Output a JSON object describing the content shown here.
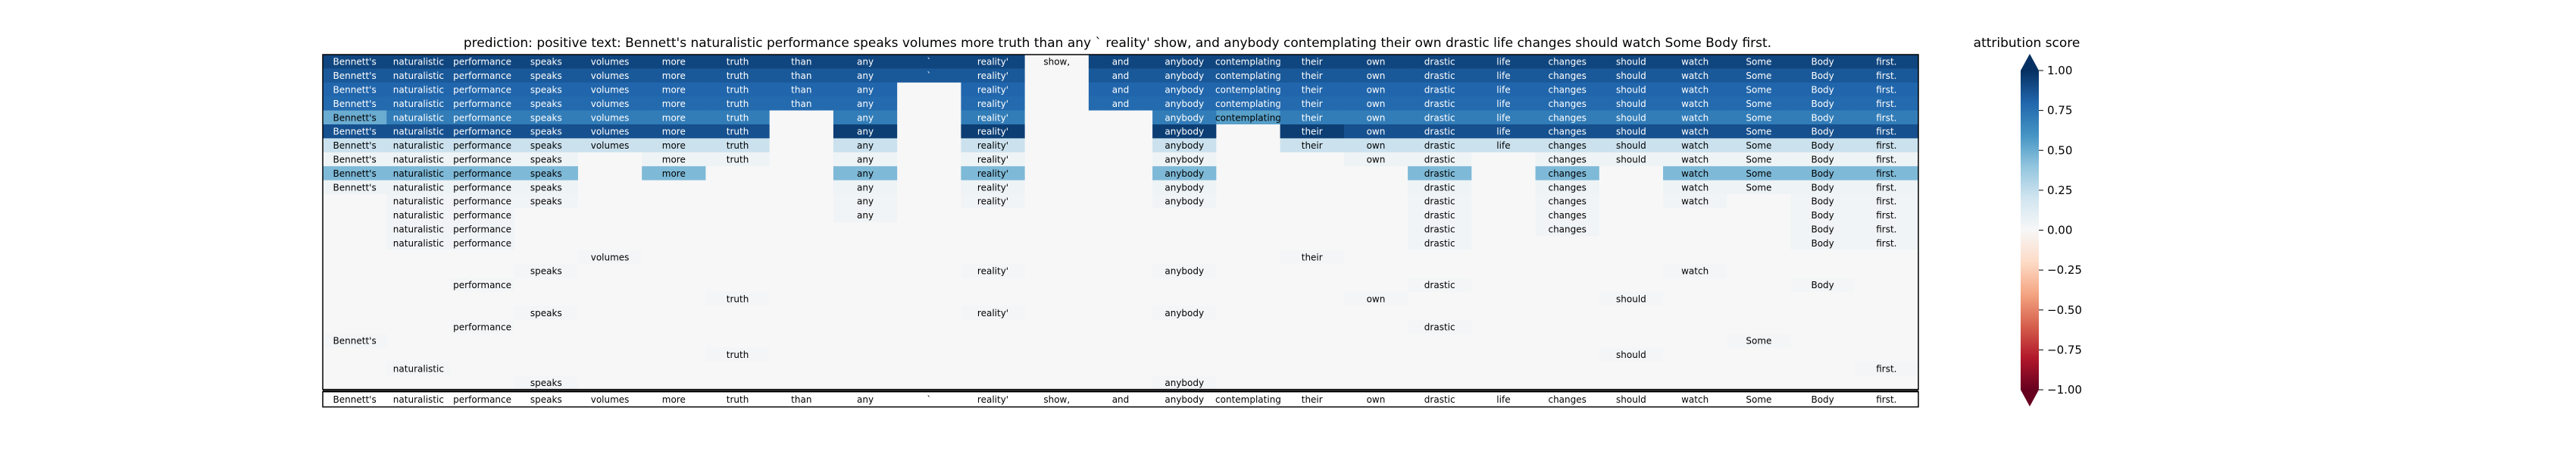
{
  "chart_data": {
    "type": "heatmap",
    "title": "prediction:  positive     text:  Bennett's naturalistic performance speaks volumes more truth than any ` reality' show, and anybody contemplating their own drastic life changes should watch Some Body first.",
    "colorbar_label": "attribution score",
    "colorbar_ticks": [
      "1.00",
      "0.75",
      "0.50",
      "0.25",
      "0.00",
      "−0.25",
      "−0.50",
      "−0.75",
      "−1.00"
    ],
    "color_range": [
      -1,
      1
    ],
    "colormap": [
      "#67001f",
      "#b2182b",
      "#d6604d",
      "#f4a582",
      "#fddbc7",
      "#f7f7f7",
      "#d1e5f0",
      "#92c5de",
      "#4393c3",
      "#2166ac",
      "#053061"
    ],
    "tokens": [
      "Bennett's",
      "naturalistic",
      "performance",
      "speaks",
      "volumes",
      "more",
      "truth",
      "than",
      "any",
      "`",
      "reality'",
      "show,",
      "and",
      "anybody",
      "contemplating",
      "their",
      "own",
      "drastic",
      "life",
      "changes",
      "should",
      "watch",
      "Some",
      "Body",
      "first."
    ],
    "rows": [
      [
        0.92,
        0.92,
        0.92,
        0.92,
        0.92,
        0.92,
        0.92,
        0.92,
        0.92,
        0.92,
        0.92,
        0.0,
        0.92,
        0.92,
        0.92,
        0.92,
        0.92,
        0.92,
        0.92,
        0.92,
        0.92,
        0.92,
        0.92,
        0.92,
        0.92
      ],
      [
        0.85,
        0.85,
        0.85,
        0.85,
        0.85,
        0.85,
        0.85,
        0.85,
        0.85,
        0.85,
        0.85,
        0.0,
        0.85,
        0.85,
        0.85,
        0.85,
        0.85,
        0.85,
        0.85,
        0.85,
        0.85,
        0.85,
        0.85,
        0.85,
        0.85
      ],
      [
        0.8,
        0.8,
        0.8,
        0.8,
        0.8,
        0.8,
        0.8,
        0.8,
        0.8,
        0.0,
        0.8,
        0.0,
        0.8,
        0.8,
        0.8,
        0.8,
        0.8,
        0.8,
        0.8,
        0.8,
        0.8,
        0.8,
        0.8,
        0.8,
        0.8
      ],
      [
        0.78,
        0.78,
        0.78,
        0.78,
        0.78,
        0.78,
        0.78,
        0.78,
        0.78,
        0.0,
        0.78,
        0.0,
        0.78,
        0.78,
        0.78,
        0.78,
        0.78,
        0.78,
        0.78,
        0.78,
        0.78,
        0.78,
        0.78,
        0.78,
        0.78
      ],
      [
        0.5,
        0.7,
        0.7,
        0.7,
        0.7,
        0.7,
        0.7,
        0.0,
        0.7,
        0.0,
        0.7,
        0.0,
        0.0,
        0.7,
        0.55,
        0.7,
        0.7,
        0.7,
        0.7,
        0.7,
        0.7,
        0.7,
        0.7,
        0.7,
        0.7
      ],
      [
        0.88,
        0.88,
        0.88,
        0.88,
        0.88,
        0.88,
        0.88,
        0.0,
        0.95,
        0.0,
        0.95,
        0.0,
        0.0,
        0.95,
        0.0,
        0.95,
        0.88,
        0.88,
        0.88,
        0.88,
        0.88,
        0.88,
        0.88,
        0.88,
        0.88
      ],
      [
        0.22,
        0.22,
        0.22,
        0.22,
        0.22,
        0.22,
        0.22,
        0.0,
        0.22,
        0.0,
        0.22,
        0.0,
        0.0,
        0.22,
        0.0,
        0.22,
        0.22,
        0.22,
        0.22,
        0.22,
        0.22,
        0.22,
        0.22,
        0.22,
        0.22
      ],
      [
        0.05,
        0.05,
        0.05,
        0.05,
        0.0,
        0.05,
        0.05,
        0.0,
        0.05,
        0.0,
        0.05,
        0.0,
        0.0,
        0.05,
        0.0,
        0.0,
        0.05,
        0.05,
        0.0,
        0.05,
        0.05,
        0.05,
        0.05,
        0.05,
        0.05
      ],
      [
        0.45,
        0.45,
        0.45,
        0.45,
        0.0,
        0.45,
        0.0,
        0.0,
        0.45,
        0.0,
        0.45,
        0.0,
        0.0,
        0.45,
        0.0,
        0.0,
        0.0,
        0.45,
        0.0,
        0.45,
        0.0,
        0.45,
        0.45,
        0.45,
        0.45
      ],
      [
        0.05,
        0.05,
        0.05,
        0.05,
        0.0,
        0.0,
        0.0,
        0.0,
        0.05,
        0.0,
        0.05,
        0.0,
        0.0,
        0.05,
        0.0,
        0.0,
        0.0,
        0.05,
        0.0,
        0.05,
        0.0,
        0.05,
        0.05,
        0.05,
        0.05
      ],
      [
        0.0,
        0.03,
        0.03,
        0.03,
        0.0,
        0.0,
        0.0,
        0.0,
        0.03,
        0.0,
        0.03,
        0.0,
        0.0,
        0.03,
        0.0,
        0.0,
        0.0,
        0.03,
        0.0,
        0.03,
        0.0,
        0.03,
        0.0,
        0.03,
        0.03
      ],
      [
        0.0,
        0.03,
        0.03,
        0.0,
        0.0,
        0.0,
        0.0,
        0.0,
        0.03,
        0.0,
        0.0,
        0.0,
        0.0,
        0.0,
        0.0,
        0.0,
        0.0,
        0.03,
        0.0,
        0.03,
        0.0,
        0.0,
        0.0,
        0.03,
        0.03
      ],
      [
        0.0,
        0.03,
        0.03,
        0.0,
        0.0,
        0.0,
        0.0,
        0.0,
        0.0,
        0.0,
        0.0,
        0.0,
        0.0,
        0.0,
        0.0,
        0.0,
        0.0,
        0.03,
        0.0,
        0.03,
        0.0,
        0.0,
        0.0,
        0.03,
        0.03
      ],
      [
        0.0,
        0.03,
        0.03,
        0.0,
        0.0,
        0.0,
        0.0,
        0.0,
        0.0,
        0.0,
        0.0,
        0.0,
        0.0,
        0.0,
        0.0,
        0.0,
        0.0,
        0.03,
        0.0,
        0.0,
        0.0,
        0.0,
        0.0,
        0.03,
        0.03
      ],
      [
        0.0,
        0.0,
        0.0,
        0.0,
        0.02,
        0.0,
        0.0,
        0.0,
        0.0,
        0.0,
        0.0,
        0.0,
        0.0,
        0.0,
        0.0,
        0.02,
        0.0,
        0.0,
        0.0,
        0.0,
        0.0,
        0.0,
        0.0,
        0.0,
        0.0
      ],
      [
        0.0,
        0.0,
        0.0,
        0.02,
        0.0,
        0.0,
        0.0,
        0.0,
        0.0,
        0.0,
        0.02,
        0.0,
        0.0,
        0.02,
        0.0,
        0.0,
        0.0,
        0.0,
        0.0,
        0.0,
        0.0,
        0.02,
        0.0,
        0.0,
        0.0
      ],
      [
        0.0,
        0.0,
        0.02,
        0.0,
        0.0,
        0.0,
        0.0,
        0.0,
        0.0,
        0.0,
        0.0,
        0.0,
        0.0,
        0.0,
        0.0,
        0.0,
        0.0,
        0.02,
        0.0,
        0.0,
        0.0,
        0.0,
        0.0,
        0.02,
        0.0
      ],
      [
        0.0,
        0.0,
        0.0,
        0.0,
        0.0,
        0.0,
        0.02,
        0.0,
        0.0,
        0.0,
        0.0,
        0.0,
        0.0,
        0.0,
        0.0,
        0.0,
        0.02,
        0.0,
        0.0,
        0.0,
        0.02,
        0.0,
        0.0,
        0.0,
        0.0
      ],
      [
        0.0,
        0.0,
        0.0,
        0.02,
        0.0,
        0.0,
        0.0,
        0.0,
        0.0,
        0.0,
        0.02,
        0.0,
        0.0,
        0.02,
        0.0,
        0.0,
        0.0,
        0.0,
        0.0,
        0.0,
        0.0,
        0.0,
        0.0,
        0.0,
        0.0
      ],
      [
        0.0,
        0.0,
        0.02,
        0.0,
        0.0,
        0.0,
        0.0,
        0.0,
        0.0,
        0.0,
        0.0,
        0.0,
        0.0,
        0.0,
        0.0,
        0.0,
        0.0,
        0.02,
        0.0,
        0.0,
        0.0,
        0.0,
        0.0,
        0.0,
        0.0
      ],
      [
        0.02,
        0.0,
        0.0,
        0.0,
        0.0,
        0.0,
        0.0,
        0.0,
        0.0,
        0.0,
        0.0,
        0.0,
        0.0,
        0.0,
        0.0,
        0.0,
        0.0,
        0.0,
        0.0,
        0.0,
        0.0,
        0.0,
        0.02,
        0.0,
        0.0
      ],
      [
        0.0,
        0.0,
        0.0,
        0.0,
        0.0,
        0.0,
        0.02,
        0.0,
        0.0,
        0.0,
        0.0,
        0.0,
        0.0,
        0.0,
        0.0,
        0.0,
        0.0,
        0.0,
        0.0,
        0.0,
        0.02,
        0.0,
        0.0,
        0.0,
        0.0
      ],
      [
        0.0,
        0.02,
        0.0,
        0.0,
        0.0,
        0.0,
        0.0,
        0.0,
        0.0,
        0.0,
        0.0,
        0.0,
        0.0,
        0.0,
        0.0,
        0.0,
        0.0,
        0.0,
        0.0,
        0.0,
        0.0,
        0.0,
        0.0,
        0.0,
        0.02
      ],
      [
        0.0,
        0.0,
        0.0,
        0.02,
        0.0,
        0.0,
        0.0,
        0.0,
        0.0,
        0.0,
        0.0,
        0.0,
        0.0,
        0.02,
        0.0,
        0.0,
        0.0,
        0.0,
        0.0,
        0.0,
        0.0,
        0.0,
        0.0,
        0.0,
        0.0
      ]
    ],
    "row_labels": [
      [
        "Bennett's",
        "naturalistic",
        "performance",
        "speaks",
        "volumes",
        "more",
        "truth",
        "than",
        "any",
        "`",
        "reality'",
        "show,",
        "and",
        "anybody",
        "contemplating",
        "their",
        "own",
        "drastic",
        "life",
        "changes",
        "should",
        "watch",
        "Some",
        "Body",
        "first."
      ],
      [
        "Bennett's",
        "naturalistic",
        "performance",
        "speaks",
        "volumes",
        "more",
        "truth",
        "than",
        "any",
        "`",
        "reality'",
        "",
        "and",
        "anybody",
        "contemplating",
        "their",
        "own",
        "drastic",
        "life",
        "changes",
        "should",
        "watch",
        "Some",
        "Body",
        "first."
      ],
      [
        "Bennett's",
        "naturalistic",
        "performance",
        "speaks",
        "volumes",
        "more",
        "truth",
        "than",
        "any",
        "",
        "reality'",
        "",
        "and",
        "anybody",
        "contemplating",
        "their",
        "own",
        "drastic",
        "life",
        "changes",
        "should",
        "watch",
        "Some",
        "Body",
        "first."
      ],
      [
        "Bennett's",
        "naturalistic",
        "performance",
        "speaks",
        "volumes",
        "more",
        "truth",
        "than",
        "any",
        "",
        "reality'",
        "",
        "and",
        "anybody",
        "contemplating",
        "their",
        "own",
        "drastic",
        "life",
        "changes",
        "should",
        "watch",
        "Some",
        "Body",
        "first."
      ],
      [
        "Bennett's",
        "naturalistic",
        "performance",
        "speaks",
        "volumes",
        "more",
        "truth",
        "",
        "any",
        "",
        "reality'",
        "",
        "",
        "anybody",
        "contemplating",
        "their",
        "own",
        "drastic",
        "life",
        "changes",
        "should",
        "watch",
        "Some",
        "Body",
        "first."
      ],
      [
        "Bennett's",
        "naturalistic",
        "performance",
        "speaks",
        "volumes",
        "more",
        "truth",
        "",
        "any",
        "",
        "reality'",
        "",
        "",
        "anybody",
        "",
        "their",
        "own",
        "drastic",
        "life",
        "changes",
        "should",
        "watch",
        "Some",
        "Body",
        "first."
      ],
      [
        "Bennett's",
        "naturalistic",
        "performance",
        "speaks",
        "volumes",
        "more",
        "truth",
        "",
        "any",
        "",
        "reality'",
        "",
        "",
        "anybody",
        "",
        "their",
        "own",
        "drastic",
        "life",
        "changes",
        "should",
        "watch",
        "Some",
        "Body",
        "first."
      ],
      [
        "Bennett's",
        "naturalistic",
        "performance",
        "speaks",
        "",
        "more",
        "truth",
        "",
        "any",
        "",
        "reality'",
        "",
        "",
        "anybody",
        "",
        "",
        "own",
        "drastic",
        "",
        "changes",
        "should",
        "watch",
        "Some",
        "Body",
        "first."
      ],
      [
        "Bennett's",
        "naturalistic",
        "performance",
        "speaks",
        "",
        "more",
        "",
        "",
        "any",
        "",
        "reality'",
        "",
        "",
        "anybody",
        "",
        "",
        "",
        "drastic",
        "",
        "changes",
        "",
        "watch",
        "Some",
        "Body",
        "first."
      ],
      [
        "Bennett's",
        "naturalistic",
        "performance",
        "speaks",
        "",
        "",
        "",
        "",
        "any",
        "",
        "reality'",
        "",
        "",
        "anybody",
        "",
        "",
        "",
        "drastic",
        "",
        "changes",
        "",
        "watch",
        "Some",
        "Body",
        "first."
      ],
      [
        "",
        "naturalistic",
        "performance",
        "speaks",
        "",
        "",
        "",
        "",
        "any",
        "",
        "reality'",
        "",
        "",
        "anybody",
        "",
        "",
        "",
        "drastic",
        "",
        "changes",
        "",
        "watch",
        "",
        "Body",
        "first."
      ],
      [
        "",
        "naturalistic",
        "performance",
        "",
        "",
        "",
        "",
        "",
        "any",
        "",
        "",
        "",
        "",
        "",
        "",
        "",
        "",
        "drastic",
        "",
        "changes",
        "",
        "",
        "",
        "Body",
        "first."
      ],
      [
        "",
        "naturalistic",
        "performance",
        "",
        "",
        "",
        "",
        "",
        "",
        "",
        "",
        "",
        "",
        "",
        "",
        "",
        "",
        "drastic",
        "",
        "changes",
        "",
        "",
        "",
        "Body",
        "first."
      ],
      [
        "",
        "naturalistic",
        "performance",
        "",
        "",
        "",
        "",
        "",
        "",
        "",
        "",
        "",
        "",
        "",
        "",
        "",
        "",
        "drastic",
        "",
        "",
        "",
        "",
        "",
        "Body",
        "first."
      ],
      [
        "",
        "",
        "",
        "",
        "volumes",
        "",
        "",
        "",
        "",
        "",
        "",
        "",
        "",
        "",
        "",
        "their",
        "",
        "",
        "",
        "",
        "",
        "",
        "",
        "",
        ""
      ],
      [
        "",
        "",
        "",
        "speaks",
        "",
        "",
        "",
        "",
        "",
        "",
        "reality'",
        "",
        "",
        "anybody",
        "",
        "",
        "",
        "",
        "",
        "",
        "",
        "watch",
        "",
        "",
        ""
      ],
      [
        "",
        "",
        "performance",
        "",
        "",
        "",
        "",
        "",
        "",
        "",
        "",
        "",
        "",
        "",
        "",
        "",
        "",
        "drastic",
        "",
        "",
        "",
        "",
        "",
        "Body",
        ""
      ],
      [
        "",
        "",
        "",
        "",
        "",
        "",
        "truth",
        "",
        "",
        "",
        "",
        "",
        "",
        "",
        "",
        "",
        "own",
        "",
        "",
        "",
        "should",
        "",
        "",
        "",
        ""
      ],
      [
        "",
        "",
        "",
        "speaks",
        "",
        "",
        "",
        "",
        "",
        "",
        "reality'",
        "",
        "",
        "anybody",
        "",
        "",
        "",
        "",
        "",
        "",
        "",
        "",
        "",
        "",
        ""
      ],
      [
        "",
        "",
        "performance",
        "",
        "",
        "",
        "",
        "",
        "",
        "",
        "",
        "",
        "",
        "",
        "",
        "",
        "",
        "drastic",
        "",
        "",
        "",
        "",
        "",
        "",
        ""
      ],
      [
        "Bennett's",
        "",
        "",
        "",
        "",
        "",
        "",
        "",
        "",
        "",
        "",
        "",
        "",
        "",
        "",
        "",
        "",
        "",
        "",
        "",
        "",
        "",
        "Some",
        "",
        ""
      ],
      [
        "",
        "",
        "",
        "",
        "",
        "",
        "truth",
        "",
        "",
        "",
        "",
        "",
        "",
        "",
        "",
        "",
        "",
        "",
        "",
        "",
        "should",
        "",
        "",
        "",
        ""
      ],
      [
        "",
        "naturalistic",
        "",
        "",
        "",
        "",
        "",
        "",
        "",
        "",
        "",
        "",
        "",
        "",
        "",
        "",
        "",
        "",
        "",
        "",
        "",
        "",
        "",
        "",
        "first."
      ],
      [
        "",
        "",
        "",
        "speaks",
        "",
        "",
        "",
        "",
        "",
        "",
        "",
        "",
        "",
        "anybody",
        "",
        "",
        "",
        "",
        "",
        "",
        "",
        "",
        "",
        "",
        ""
      ]
    ],
    "footer_labels": [
      "Bennett's",
      "naturalistic",
      "performance",
      "speaks",
      "volumes",
      "more",
      "truth",
      "than",
      "any",
      "`",
      "reality'",
      "show,",
      "and",
      "anybody",
      "contemplating",
      "their",
      "own",
      "drastic",
      "life",
      "changes",
      "should",
      "watch",
      "Some",
      "Body",
      "first."
    ]
  }
}
